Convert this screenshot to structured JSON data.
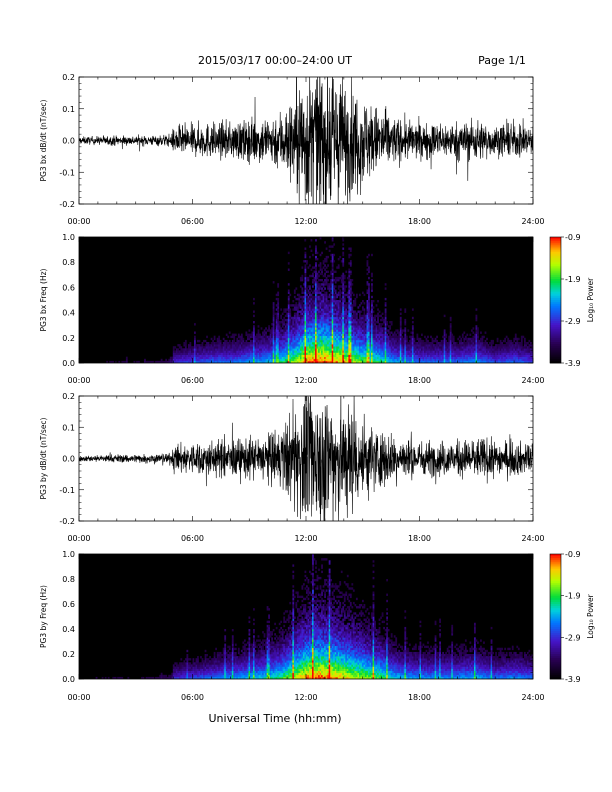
{
  "header": {
    "title": "2015/03/17  00:00–24:00 UT",
    "page": "Page 1/1"
  },
  "footer": {
    "xlabel": "Universal Time (hh:mm)"
  },
  "chart_data": [
    {
      "type": "line",
      "ylabel": "PG3 bx dB/dt (nT/sec)",
      "xlim": [
        0,
        24
      ],
      "ylim": [
        -0.2,
        0.2
      ],
      "x_ticks": [
        "00:00",
        "06:00",
        "12:00",
        "18:00",
        "24:00"
      ],
      "y_ticks": [
        "0.2",
        "0.1",
        "0.0",
        "-0.1",
        "-0.2"
      ],
      "y_tick_values": [
        0.2,
        0.1,
        0.0,
        -0.1,
        -0.2
      ],
      "envelope": {
        "hours": [
          0,
          1,
          2,
          3,
          4,
          4.9,
          5.0,
          6,
          7,
          8,
          9,
          10,
          10.5,
          11,
          11.5,
          12,
          12.5,
          13,
          13.5,
          14,
          14.5,
          15,
          15.5,
          16,
          16.5,
          17,
          18,
          19,
          20,
          21,
          22,
          23,
          24
        ],
        "amplitude": [
          0.01,
          0.012,
          0.014,
          0.013,
          0.015,
          0.018,
          0.04,
          0.045,
          0.05,
          0.05,
          0.06,
          0.07,
          0.08,
          0.1,
          0.15,
          0.2,
          0.2,
          0.2,
          0.2,
          0.18,
          0.15,
          0.13,
          0.1,
          0.09,
          0.07,
          0.06,
          0.05,
          0.05,
          0.05,
          0.06,
          0.04,
          0.05,
          0.04
        ]
      }
    },
    {
      "type": "heatmap",
      "ylabel": "PG3 bx Freq (Hz)",
      "xlim": [
        0,
        24
      ],
      "ylim": [
        0,
        1.0
      ],
      "x_ticks": [
        "00:00",
        "06:00",
        "12:00",
        "18:00",
        "24:00"
      ],
      "y_ticks": [
        "1.0",
        "0.8",
        "0.6",
        "0.4",
        "0.2",
        "0.0"
      ],
      "y_tick_values": [
        1.0,
        0.8,
        0.6,
        0.4,
        0.2,
        0.0
      ],
      "colorbar": {
        "label": "Log₁₀ Power",
        "range": [
          -3.9,
          -0.9
        ],
        "ticks": [
          "-0.9",
          "-1.9",
          "-2.9",
          "-3.9"
        ],
        "tick_values": [
          -0.9,
          -1.9,
          -2.9,
          -3.9
        ]
      },
      "activity": {
        "hours": [
          0,
          1,
          2,
          3,
          4,
          4.9,
          5.0,
          6,
          7,
          8,
          9,
          10,
          10.5,
          11,
          11.5,
          12,
          12.5,
          13,
          13.5,
          14,
          14.5,
          15,
          15.5,
          16,
          16.5,
          17,
          18,
          19,
          20,
          21,
          22,
          23,
          24
        ],
        "level": [
          0.1,
          0.12,
          0.14,
          0.13,
          0.15,
          0.18,
          0.35,
          0.4,
          0.45,
          0.45,
          0.5,
          0.55,
          0.6,
          0.7,
          0.8,
          0.95,
          1.0,
          1.0,
          0.95,
          0.9,
          0.8,
          0.75,
          0.7,
          0.65,
          0.55,
          0.5,
          0.45,
          0.45,
          0.45,
          0.5,
          0.4,
          0.45,
          0.4
        ]
      }
    },
    {
      "type": "line",
      "ylabel": "PG3 by dB/dt (nT/sec)",
      "xlim": [
        0,
        24
      ],
      "ylim": [
        -0.2,
        0.2
      ],
      "x_ticks": [
        "00:00",
        "06:00",
        "12:00",
        "18:00",
        "24:00"
      ],
      "y_ticks": [
        "0.2",
        "0.1",
        "0.0",
        "-0.1",
        "-0.2"
      ],
      "y_tick_values": [
        0.2,
        0.1,
        0.0,
        -0.1,
        -0.2
      ],
      "envelope": {
        "hours": [
          0,
          1,
          2,
          3,
          4,
          4.9,
          5.0,
          6,
          7,
          8,
          9,
          10,
          10.5,
          11,
          11.5,
          12,
          12.5,
          13,
          13.5,
          14,
          14.5,
          15,
          15.5,
          16,
          16.5,
          17,
          18,
          19,
          20,
          21,
          22,
          23,
          24
        ],
        "amplitude": [
          0.008,
          0.01,
          0.012,
          0.012,
          0.014,
          0.016,
          0.04,
          0.045,
          0.05,
          0.055,
          0.06,
          0.07,
          0.08,
          0.11,
          0.15,
          0.2,
          0.2,
          0.2,
          0.2,
          0.17,
          0.15,
          0.12,
          0.1,
          0.08,
          0.07,
          0.06,
          0.05,
          0.05,
          0.05,
          0.06,
          0.05,
          0.05,
          0.04
        ]
      }
    },
    {
      "type": "heatmap",
      "ylabel": "PG3 by Freq (Hz)",
      "xlim": [
        0,
        24
      ],
      "ylim": [
        0,
        1.0
      ],
      "x_ticks": [
        "00:00",
        "06:00",
        "12:00",
        "18:00",
        "24:00"
      ],
      "y_ticks": [
        "1.0",
        "0.8",
        "0.6",
        "0.4",
        "0.2",
        "0.0"
      ],
      "y_tick_values": [
        1.0,
        0.8,
        0.6,
        0.4,
        0.2,
        0.0
      ],
      "colorbar": {
        "label": "Log₁₀ Power",
        "range": [
          -3.9,
          -0.9
        ],
        "ticks": [
          "-0.9",
          "-1.9",
          "-2.9",
          "-3.9"
        ],
        "tick_values": [
          -0.9,
          -1.9,
          -2.9,
          -3.9
        ]
      },
      "activity": {
        "hours": [
          0,
          1,
          2,
          3,
          4,
          4.9,
          5.0,
          6,
          7,
          8,
          9,
          10,
          10.5,
          11,
          11.5,
          12,
          12.5,
          13,
          13.5,
          14,
          14.5,
          15,
          15.5,
          16,
          16.5,
          17,
          18,
          19,
          20,
          21,
          22,
          23,
          24
        ],
        "level": [
          0.1,
          0.12,
          0.14,
          0.13,
          0.15,
          0.18,
          0.35,
          0.4,
          0.45,
          0.5,
          0.55,
          0.6,
          0.65,
          0.75,
          0.85,
          0.95,
          1.0,
          1.0,
          0.95,
          0.9,
          0.85,
          0.8,
          0.75,
          0.7,
          0.6,
          0.55,
          0.5,
          0.5,
          0.5,
          0.55,
          0.45,
          0.5,
          0.45
        ]
      }
    }
  ]
}
